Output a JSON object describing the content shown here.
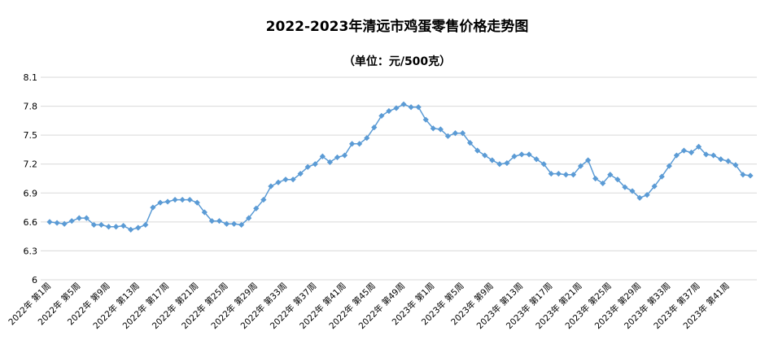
{
  "chart_data": {
    "type": "line",
    "title": "2022-2023年清远市鸡蛋零售价格走势图",
    "subtitle": "（单位：元/500克）",
    "xlabel": "",
    "ylabel": "",
    "ylim": [
      6,
      8.1
    ],
    "yticks": [
      "6",
      "6.3",
      "6.6",
      "6.9",
      "7.2",
      "7.5",
      "7.8",
      "8.1"
    ],
    "ytick_values": [
      6,
      6.3,
      6.6,
      6.9,
      7.2,
      7.5,
      7.8,
      8.1
    ],
    "grid": true,
    "legend": "none",
    "colors": {
      "series": "#5b9bd5",
      "grid": "#d9d9d9"
    },
    "categories": [
      "2022年 第1周",
      "2022年 第2周",
      "2022年 第3周",
      "2022年 第4周",
      "2022年 第5周",
      "2022年 第6周",
      "2022年 第7周",
      "2022年 第8周",
      "2022年 第9周",
      "2022年 第10周",
      "2022年 第11周",
      "2022年 第12周",
      "2022年 第13周",
      "2022年 第14周",
      "2022年 第15周",
      "2022年 第16周",
      "2022年 第17周",
      "2022年 第18周",
      "2022年 第19周",
      "2022年 第20周",
      "2022年 第21周",
      "2022年 第22周",
      "2022年 第23周",
      "2022年 第24周",
      "2022年 第25周",
      "2022年 第26周",
      "2022年 第27周",
      "2022年 第28周",
      "2022年 第29周",
      "2022年 第30周",
      "2022年 第31周",
      "2022年 第32周",
      "2022年 第33周",
      "2022年 第34周",
      "2022年 第35周",
      "2022年 第36周",
      "2022年 第37周",
      "2022年 第38周",
      "2022年 第39周",
      "2022年 第40周",
      "2022年 第41周",
      "2022年 第42周",
      "2022年 第43周",
      "2022年 第44周",
      "2022年 第45周",
      "2022年 第46周",
      "2022年 第47周",
      "2022年 第48周",
      "2022年 第49周",
      "2022年 第50周",
      "2022年 第51周",
      "2022年 第52周",
      "2023年 第1周",
      "2023年 第2周",
      "2023年 第3周",
      "2023年 第4周",
      "2023年 第5周",
      "2023年 第6周",
      "2023年 第7周",
      "2023年 第8周",
      "2023年 第9周",
      "2023年 第10周",
      "2023年 第11周",
      "2023年 第12周",
      "2023年 第13周",
      "2023年 第14周",
      "2023年 第15周",
      "2023年 第16周",
      "2023年 第17周",
      "2023年 第18周",
      "2023年 第19周",
      "2023年 第20周",
      "2023年 第21周",
      "2023年 第22周",
      "2023年 第23周",
      "2023年 第24周",
      "2023年 第25周",
      "2023年 第26周",
      "2023年 第27周",
      "2023年 第28周",
      "2023年 第29周",
      "2023年 第30周",
      "2023年 第31周",
      "2023年 第32周",
      "2023年 第33周",
      "2023年 第34周",
      "2023年 第35周",
      "2023年 第36周",
      "2023年 第37周",
      "2023年 第38周",
      "2023年 第39周",
      "2023年 第40周",
      "2023年 第41周",
      "2023年 第42周",
      "2023年 第43周",
      "2023年 第44周"
    ],
    "visible_tick_labels": [
      "2022年 第1周",
      "2022年 第5周",
      "2022年 第9周",
      "2022年 第13周",
      "2022年 第17周",
      "2022年 第21周",
      "2022年 第25周",
      "2022年 第29周",
      "2022年 第33周",
      "2022年 第37周",
      "2022年 第41周",
      "2022年 第45周",
      "2022年 第49周",
      "2023年 第1周",
      "2023年 第5周",
      "2023年 第9周",
      "2023年 第13周",
      "2023年 第17周",
      "2023年 第21周",
      "2023年 第25周",
      "2023年 第29周",
      "2023年 第33周",
      "2023年 第37周",
      "2023年 第41周"
    ],
    "visible_tick_indices": [
      0,
      4,
      8,
      12,
      16,
      20,
      24,
      28,
      32,
      36,
      40,
      44,
      48,
      52,
      56,
      60,
      64,
      68,
      72,
      76,
      80,
      84,
      88,
      92
    ],
    "series": [
      {
        "values": [
          6.6,
          6.59,
          6.58,
          6.61,
          6.64,
          6.64,
          6.57,
          6.57,
          6.55,
          6.55,
          6.56,
          6.52,
          6.54,
          6.57,
          6.75,
          6.8,
          6.81,
          6.83,
          6.83,
          6.83,
          6.8,
          6.7,
          6.61,
          6.61,
          6.58,
          6.58,
          6.57,
          6.64,
          6.74,
          6.83,
          6.97,
          7.01,
          7.04,
          7.04,
          7.1,
          7.17,
          7.2,
          7.28,
          7.22,
          7.27,
          7.29,
          7.41,
          7.41,
          7.47,
          7.58,
          7.7,
          7.75,
          7.78,
          7.82,
          7.79,
          7.79,
          7.66,
          7.57,
          7.56,
          7.49,
          7.52,
          7.52,
          7.42,
          7.34,
          7.29,
          7.24,
          7.2,
          7.21,
          7.28,
          7.3,
          7.3,
          7.25,
          7.2,
          7.1,
          7.1,
          7.09,
          7.09,
          7.18,
          7.24,
          7.05,
          7.0,
          7.09,
          7.04,
          6.96,
          6.92,
          6.85,
          6.88,
          6.97,
          7.07,
          7.18,
          7.29,
          7.34,
          7.32,
          7.38,
          7.3,
          7.29,
          7.25,
          7.23,
          7.19,
          7.09,
          7.08
        ]
      }
    ]
  }
}
